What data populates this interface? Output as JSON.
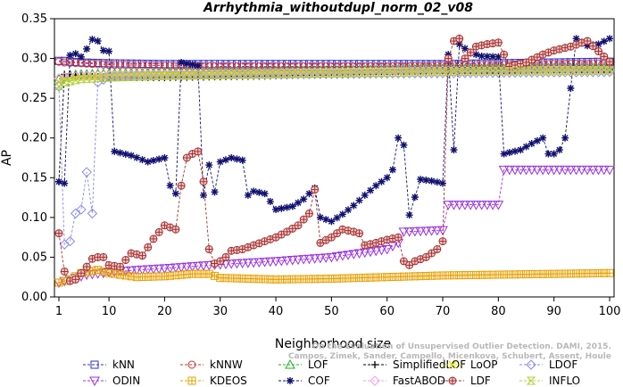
{
  "chart_data": {
    "type": "line",
    "title": "Arrhythmia_withoutdupl_norm_02_v08",
    "xlabel": "Neighborhood size",
    "ylabel": "AP",
    "xlim": [
      1,
      100
    ],
    "ylim": [
      0,
      0.35
    ],
    "xticks": [
      1,
      10,
      20,
      30,
      40,
      50,
      60,
      70,
      80,
      90,
      100
    ],
    "yticks": [
      0.0,
      0.05,
      0.1,
      0.15,
      0.2,
      0.25,
      0.3,
      0.35
    ],
    "ytick_labels": [
      "0.00",
      "0.05",
      "0.10",
      "0.15",
      "0.20",
      "0.25",
      "0.30",
      "0.35"
    ],
    "grid": false,
    "legend_position": "bottom",
    "watermark": [
      "Campos, Zimek, Sander, Campello, Micenkova, Schubert, Assent, Houle",
      "On the Evaluation of Unsupervised Outlier Detection. DAMI, 2015."
    ],
    "series": [
      {
        "name": "kNN",
        "color": "#3030d0",
        "marker": "square",
        "points": [
          [
            1,
            0.297
          ],
          [
            2,
            0.297
          ],
          [
            3,
            0.296
          ],
          [
            5,
            0.295
          ],
          [
            10,
            0.294
          ],
          [
            20,
            0.293
          ],
          [
            30,
            0.293
          ],
          [
            40,
            0.293
          ],
          [
            50,
            0.293
          ],
          [
            60,
            0.293
          ],
          [
            70,
            0.293
          ],
          [
            80,
            0.294
          ],
          [
            90,
            0.295
          ],
          [
            100,
            0.296
          ]
        ]
      },
      {
        "name": "kNNW",
        "color": "#d03030",
        "marker": "circle",
        "points": [
          [
            1,
            0.296
          ],
          [
            2,
            0.295
          ],
          [
            5,
            0.294
          ],
          [
            10,
            0.292
          ],
          [
            20,
            0.291
          ],
          [
            30,
            0.29
          ],
          [
            40,
            0.29
          ],
          [
            50,
            0.29
          ],
          [
            60,
            0.29
          ],
          [
            70,
            0.291
          ],
          [
            80,
            0.292
          ],
          [
            90,
            0.293
          ],
          [
            100,
            0.294
          ]
        ]
      },
      {
        "name": "LOF",
        "color": "#20b020",
        "marker": "triangle-up",
        "points": [
          [
            1,
            0.274
          ],
          [
            2,
            0.277
          ],
          [
            3,
            0.279
          ],
          [
            5,
            0.28
          ],
          [
            10,
            0.281
          ],
          [
            20,
            0.282
          ],
          [
            30,
            0.283
          ],
          [
            40,
            0.284
          ],
          [
            50,
            0.285
          ],
          [
            60,
            0.286
          ],
          [
            70,
            0.287
          ],
          [
            80,
            0.287
          ],
          [
            90,
            0.288
          ],
          [
            100,
            0.288
          ]
        ]
      },
      {
        "name": "SimplifiedLOF",
        "color": "#000000",
        "marker": "plus",
        "points": [
          [
            1,
            0.145
          ],
          [
            2,
            0.28
          ],
          [
            3,
            0.28
          ],
          [
            5,
            0.278
          ],
          [
            10,
            0.276
          ],
          [
            20,
            0.276
          ],
          [
            30,
            0.277
          ],
          [
            40,
            0.278
          ],
          [
            50,
            0.28
          ],
          [
            60,
            0.282
          ],
          [
            70,
            0.284
          ],
          [
            80,
            0.285
          ],
          [
            90,
            0.285
          ],
          [
            100,
            0.286
          ]
        ]
      },
      {
        "name": "LoOP",
        "color": "#e0e000",
        "marker": "x",
        "points": [
          [
            1,
            0.271
          ],
          [
            2,
            0.275
          ],
          [
            5,
            0.277
          ],
          [
            10,
            0.279
          ],
          [
            20,
            0.28
          ],
          [
            30,
            0.281
          ],
          [
            40,
            0.282
          ],
          [
            50,
            0.283
          ],
          [
            60,
            0.284
          ],
          [
            70,
            0.285
          ],
          [
            80,
            0.285
          ],
          [
            90,
            0.286
          ],
          [
            100,
            0.286
          ]
        ]
      },
      {
        "name": "LDOF",
        "color": "#8888ee",
        "marker": "diamond",
        "points": [
          [
            1,
            0.265
          ],
          [
            2,
            0.066
          ],
          [
            3,
            0.07
          ],
          [
            4,
            0.105
          ],
          [
            5,
            0.11
          ],
          [
            6,
            0.157
          ],
          [
            7,
            0.105
          ],
          [
            8,
            0.27
          ],
          [
            10,
            0.277
          ],
          [
            20,
            0.279
          ],
          [
            40,
            0.28
          ],
          [
            60,
            0.281
          ],
          [
            80,
            0.282
          ],
          [
            100,
            0.283
          ]
        ]
      },
      {
        "name": "ODIN",
        "color": "#9a30e0",
        "marker": "triangle-down",
        "points": [
          [
            1,
            0.018
          ],
          [
            3,
            0.022
          ],
          [
            6,
            0.028
          ],
          [
            10,
            0.031
          ],
          [
            15,
            0.034
          ],
          [
            20,
            0.036
          ],
          [
            30,
            0.041
          ],
          [
            40,
            0.045
          ],
          [
            50,
            0.05
          ],
          [
            60,
            0.06
          ],
          [
            62,
            0.068
          ],
          [
            63,
            0.082
          ],
          [
            70,
            0.084
          ],
          [
            71,
            0.116
          ],
          [
            80,
            0.116
          ],
          [
            81,
            0.16
          ],
          [
            100,
            0.16
          ]
        ]
      },
      {
        "name": "KDEOS",
        "color": "#e8a000",
        "marker": "square-cross",
        "points": [
          [
            1,
            0.018
          ],
          [
            3,
            0.022
          ],
          [
            5,
            0.03
          ],
          [
            8,
            0.034
          ],
          [
            10,
            0.03
          ],
          [
            15,
            0.025
          ],
          [
            20,
            0.026
          ],
          [
            25,
            0.029
          ],
          [
            28,
            0.029
          ],
          [
            30,
            0.024
          ],
          [
            40,
            0.022
          ],
          [
            50,
            0.023
          ],
          [
            60,
            0.025
          ],
          [
            70,
            0.027
          ],
          [
            80,
            0.028
          ],
          [
            90,
            0.029
          ],
          [
            100,
            0.03
          ]
        ]
      },
      {
        "name": "COF",
        "color": "#101070",
        "marker": "asterisk",
        "points": [
          [
            1,
            0.145
          ],
          [
            2,
            0.143
          ],
          [
            3,
            0.304
          ],
          [
            4,
            0.306
          ],
          [
            5,
            0.302
          ],
          [
            6,
            0.312
          ],
          [
            7,
            0.324
          ],
          [
            8,
            0.322
          ],
          [
            9,
            0.31
          ],
          [
            10,
            0.309
          ],
          [
            11,
            0.183
          ],
          [
            14,
            0.178
          ],
          [
            17,
            0.17
          ],
          [
            20,
            0.175
          ],
          [
            21,
            0.14
          ],
          [
            22,
            0.13
          ],
          [
            23,
            0.295
          ],
          [
            26,
            0.291
          ],
          [
            27,
            0.128
          ],
          [
            28,
            0.166
          ],
          [
            29,
            0.132
          ],
          [
            30,
            0.17
          ],
          [
            32,
            0.175
          ],
          [
            34,
            0.172
          ],
          [
            35,
            0.128
          ],
          [
            36,
            0.133
          ],
          [
            38,
            0.13
          ],
          [
            40,
            0.11
          ],
          [
            43,
            0.114
          ],
          [
            45,
            0.123
          ],
          [
            47,
            0.137
          ],
          [
            48,
            0.1
          ],
          [
            50,
            0.095
          ],
          [
            52,
            0.104
          ],
          [
            54,
            0.115
          ],
          [
            56,
            0.128
          ],
          [
            58,
            0.14
          ],
          [
            60,
            0.15
          ],
          [
            61,
            0.16
          ],
          [
            62,
            0.2
          ],
          [
            63,
            0.191
          ],
          [
            64,
            0.103
          ],
          [
            66,
            0.148
          ],
          [
            68,
            0.146
          ],
          [
            70,
            0.143
          ],
          [
            71,
            0.305
          ],
          [
            72,
            0.185
          ],
          [
            73,
            0.318
          ],
          [
            75,
            0.307
          ],
          [
            77,
            0.303
          ],
          [
            80,
            0.302
          ],
          [
            81,
            0.18
          ],
          [
            84,
            0.185
          ],
          [
            86,
            0.193
          ],
          [
            88,
            0.2
          ],
          [
            89,
            0.18
          ],
          [
            90,
            0.18
          ],
          [
            91,
            0.185
          ],
          [
            92,
            0.2
          ],
          [
            94,
            0.325
          ],
          [
            96,
            0.316
          ],
          [
            98,
            0.318
          ],
          [
            100,
            0.325
          ]
        ]
      },
      {
        "name": "FastABOD",
        "color": "#f0a0f0",
        "marker": "diamond",
        "points": [
          [
            1,
            0.275
          ],
          [
            2,
            0.276
          ],
          [
            5,
            0.278
          ],
          [
            10,
            0.279
          ],
          [
            20,
            0.28
          ],
          [
            30,
            0.281
          ],
          [
            40,
            0.282
          ],
          [
            50,
            0.283
          ],
          [
            60,
            0.284
          ],
          [
            70,
            0.285
          ],
          [
            80,
            0.285
          ],
          [
            90,
            0.286
          ],
          [
            100,
            0.286
          ]
        ]
      },
      {
        "name": "LDF",
        "color": "#a03030",
        "marker": "circle-cross",
        "points": [
          [
            1,
            0.08
          ],
          [
            2,
            0.032
          ],
          [
            3,
            0.02
          ],
          [
            4,
            0.022
          ],
          [
            5,
            0.03
          ],
          [
            6,
            0.038
          ],
          [
            7,
            0.048
          ],
          [
            8,
            0.05
          ],
          [
            9,
            0.05
          ],
          [
            10,
            0.04
          ],
          [
            12,
            0.038
          ],
          [
            14,
            0.055
          ],
          [
            16,
            0.052
          ],
          [
            18,
            0.073
          ],
          [
            20,
            0.09
          ],
          [
            22,
            0.085
          ],
          [
            23,
            0.14
          ],
          [
            24,
            0.175
          ],
          [
            25,
            0.18
          ],
          [
            26,
            0.183
          ],
          [
            27,
            0.145
          ],
          [
            28,
            0.06
          ],
          [
            29,
            0.042
          ],
          [
            30,
            0.045
          ],
          [
            31,
            0.05
          ],
          [
            32,
            0.058
          ],
          [
            34,
            0.06
          ],
          [
            36,
            0.065
          ],
          [
            38,
            0.07
          ],
          [
            40,
            0.075
          ],
          [
            42,
            0.082
          ],
          [
            44,
            0.09
          ],
          [
            46,
            0.105
          ],
          [
            47,
            0.135
          ],
          [
            48,
            0.068
          ],
          [
            50,
            0.075
          ],
          [
            52,
            0.085
          ],
          [
            54,
            0.082
          ],
          [
            55,
            0.08
          ],
          [
            56,
            0.065
          ],
          [
            58,
            0.068
          ],
          [
            60,
            0.072
          ],
          [
            62,
            0.075
          ],
          [
            63,
            0.045
          ],
          [
            64,
            0.04
          ],
          [
            65,
            0.045
          ],
          [
            67,
            0.05
          ],
          [
            69,
            0.06
          ],
          [
            70,
            0.07
          ],
          [
            71,
            0.3
          ],
          [
            72,
            0.322
          ],
          [
            73,
            0.325
          ],
          [
            74,
            0.3
          ],
          [
            76,
            0.315
          ],
          [
            78,
            0.318
          ],
          [
            80,
            0.32
          ],
          [
            82,
            0.29
          ],
          [
            85,
            0.295
          ],
          [
            88,
            0.305
          ],
          [
            90,
            0.31
          ],
          [
            93,
            0.315
          ],
          [
            96,
            0.322
          ],
          [
            100,
            0.296
          ]
        ]
      },
      {
        "name": "INFLO",
        "color": "#b0d030",
        "marker": "hourglass",
        "points": [
          [
            1,
            0.265
          ],
          [
            2,
            0.27
          ],
          [
            5,
            0.274
          ],
          [
            10,
            0.276
          ],
          [
            20,
            0.278
          ],
          [
            30,
            0.279
          ],
          [
            40,
            0.28
          ],
          [
            50,
            0.281
          ],
          [
            60,
            0.282
          ],
          [
            70,
            0.283
          ],
          [
            80,
            0.284
          ],
          [
            90,
            0.284
          ],
          [
            100,
            0.285
          ]
        ]
      }
    ]
  }
}
